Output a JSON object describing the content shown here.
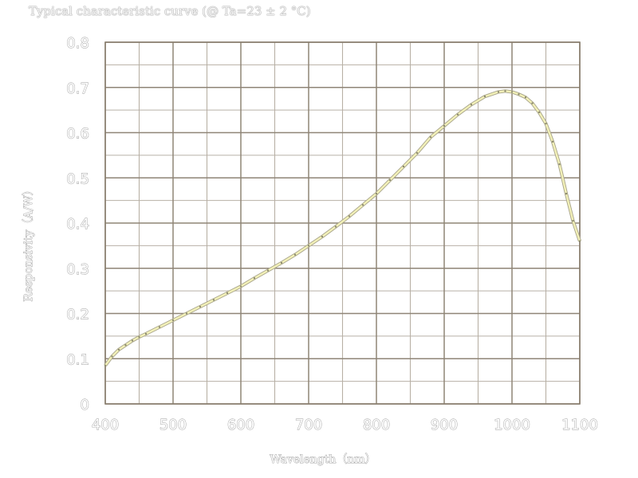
{
  "chart_data": {
    "type": "line",
    "title": "Typical characteristic curve (@ Ta=23 ± 2 °C)",
    "xlabel": "Wavelength（nm）",
    "ylabel": "Responsivity（A/W）",
    "xlim": [
      400,
      1100
    ],
    "ylim": [
      0,
      0.8
    ],
    "x_ticks": [
      "400",
      "500",
      "600",
      "700",
      "800",
      "900",
      "1000",
      "1100"
    ],
    "y_ticks": [
      "0",
      "0.1",
      "0.2",
      "0.3",
      "0.4",
      "0.5",
      "0.6",
      "0.7",
      "0.8"
    ],
    "grid": true,
    "series": [
      {
        "color": "#f2f0b8",
        "x": [
          400,
          410,
          420,
          430,
          440,
          450,
          460,
          480,
          500,
          520,
          540,
          560,
          580,
          600,
          620,
          640,
          660,
          680,
          700,
          720,
          740,
          760,
          780,
          800,
          820,
          840,
          860,
          880,
          900,
          920,
          940,
          960,
          980,
          990,
          1000,
          1010,
          1020,
          1030,
          1040,
          1050,
          1060,
          1070,
          1080,
          1090,
          1100
        ],
        "y": [
          0.085,
          0.105,
          0.12,
          0.13,
          0.14,
          0.148,
          0.155,
          0.17,
          0.185,
          0.2,
          0.215,
          0.23,
          0.245,
          0.26,
          0.278,
          0.295,
          0.312,
          0.33,
          0.35,
          0.37,
          0.392,
          0.415,
          0.44,
          0.465,
          0.495,
          0.525,
          0.555,
          0.59,
          0.615,
          0.64,
          0.662,
          0.68,
          0.69,
          0.692,
          0.69,
          0.685,
          0.678,
          0.665,
          0.645,
          0.62,
          0.58,
          0.53,
          0.465,
          0.405,
          0.36
        ]
      }
    ]
  }
}
